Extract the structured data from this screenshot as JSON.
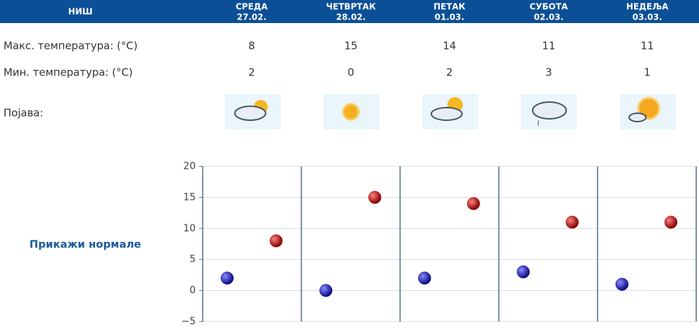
{
  "header": {
    "city": "НИШ",
    "days": [
      {
        "name": "СРЕДА",
        "date": "27.02."
      },
      {
        "name": "ЧЕТВРТАК",
        "date": "28.02."
      },
      {
        "name": "ПЕТАК",
        "date": "01.03."
      },
      {
        "name": "СУБОТА",
        "date": "02.03."
      },
      {
        "name": "НЕДЕЉА",
        "date": "03.03."
      }
    ]
  },
  "table": {
    "rows": [
      {
        "label": "Макс. температура: (°C)",
        "values": [
          "8",
          "15",
          "14",
          "11",
          "11"
        ]
      },
      {
        "label": "Мин. температура: (°C)",
        "values": [
          "2",
          "0",
          "2",
          "3",
          "1"
        ]
      },
      {
        "label": "Појава:"
      }
    ]
  },
  "link": "Прикажи нормале",
  "chart_data": {
    "type": "scatter",
    "series": [
      {
        "color": "#1a1aa8",
        "values": [
          2,
          0,
          2,
          3,
          1
        ]
      },
      {
        "color": "#c01010",
        "values": [
          8,
          15,
          14,
          11,
          11
        ]
      }
    ],
    "ylim": [
      -5,
      20
    ],
    "yticks": [
      {
        "value": -5,
        "label": "−5"
      },
      0,
      5,
      10,
      15,
      20
    ],
    "grid": true
  }
}
